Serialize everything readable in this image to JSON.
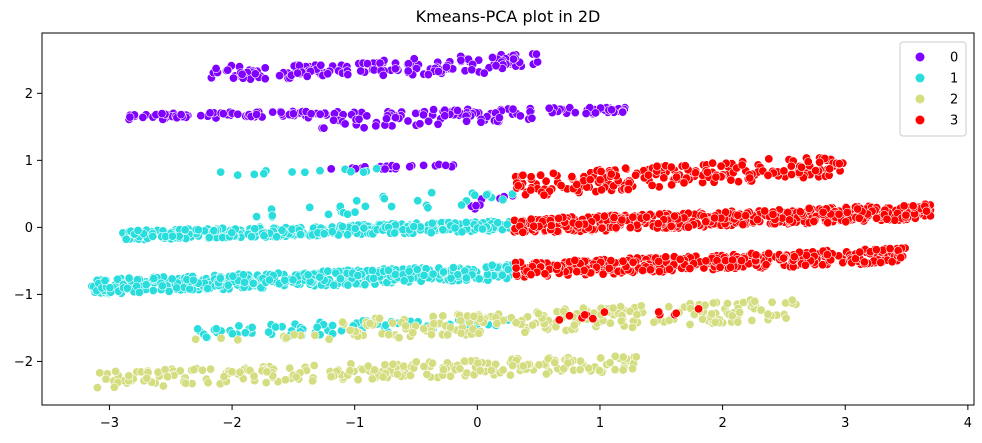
{
  "chart_data": {
    "type": "scatter",
    "title": "Kmeans-PCA plot in 2D",
    "xlabel": "",
    "ylabel": "",
    "xlim": [
      -3.55,
      4.05
    ],
    "ylim": [
      -2.65,
      2.9
    ],
    "xticks": [
      -3,
      -2,
      -1,
      0,
      1,
      2,
      3,
      4
    ],
    "yticks": [
      -2,
      -1,
      0,
      1,
      2
    ],
    "xtick_labels": [
      "−3",
      "−2",
      "−1",
      "0",
      "1",
      "2",
      "3",
      "4"
    ],
    "ytick_labels": [
      "−2",
      "−1",
      "0",
      "1",
      "2"
    ],
    "grid": false,
    "legend_position": "top-right",
    "series": [
      {
        "name": "0",
        "color": "#8000ff",
        "bands": [
          {
            "x": [
              -2.2,
              0.5
            ],
            "y": [
              2.22,
              2.6
            ],
            "n": 110
          },
          {
            "x": [
              -2.0,
              0.3
            ],
            "y": [
              2.2,
              2.42
            ],
            "n": 50
          },
          {
            "x": [
              -2.85,
              1.25
            ],
            "y": [
              1.6,
              1.8
            ],
            "n": 170
          },
          {
            "x": [
              -1.35,
              0.5
            ],
            "y": [
              1.45,
              1.75
            ],
            "n": 40
          },
          {
            "x": [
              -1.2,
              -0.1
            ],
            "y": [
              0.85,
              0.95
            ],
            "n": 22
          },
          {
            "x": [
              -0.1,
              0.3
            ],
            "y": [
              0.2,
              0.55
            ],
            "n": 8
          }
        ]
      },
      {
        "name": "1",
        "color": "#2adddd",
        "bands": [
          {
            "x": [
              -2.9,
              0.3
            ],
            "y": [
              -0.2,
              0.1
            ],
            "n": 340
          },
          {
            "x": [
              -3.15,
              0.35
            ],
            "y": [
              -1.0,
              -0.55
            ],
            "n": 460
          },
          {
            "x": [
              -2.1,
              -0.8
            ],
            "y": [
              0.75,
              0.9
            ],
            "n": 14
          },
          {
            "x": [
              -1.8,
              0.3
            ],
            "y": [
              0.1,
              0.6
            ],
            "n": 30
          },
          {
            "x": [
              -2.4,
              0.25
            ],
            "y": [
              -1.7,
              -1.3
            ],
            "n": 80
          }
        ]
      },
      {
        "name": "2",
        "color": "#d4dd80",
        "bands": [
          {
            "x": [
              -3.15,
              1.3
            ],
            "y": [
              -2.4,
              -1.9
            ],
            "n": 240
          },
          {
            "x": [
              -1.1,
              2.6
            ],
            "y": [
              -1.7,
              -1.05
            ],
            "n": 230
          },
          {
            "x": [
              -2.5,
              -1.2
            ],
            "y": [
              -1.8,
              -1.55
            ],
            "n": 10
          }
        ]
      },
      {
        "name": "3",
        "color": "#ff0000",
        "bands": [
          {
            "x": [
              0.3,
              3.7
            ],
            "y": [
              -0.1,
              0.35
            ],
            "n": 560
          },
          {
            "x": [
              0.3,
              3.5
            ],
            "y": [
              -0.75,
              -0.3
            ],
            "n": 420
          },
          {
            "x": [
              0.3,
              3.0
            ],
            "y": [
              0.45,
              1.1
            ],
            "n": 220
          },
          {
            "x": [
              0.5,
              1.9
            ],
            "y": [
              -1.4,
              -1.2
            ],
            "n": 12
          }
        ]
      }
    ]
  }
}
